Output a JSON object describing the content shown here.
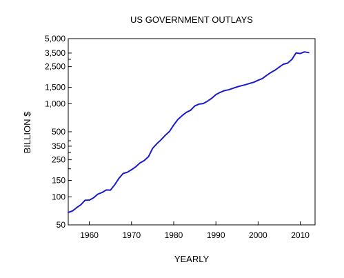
{
  "chart_data": {
    "type": "line",
    "title": "US GOVERNMENT OUTLAYS",
    "xlabel": "YEARLY",
    "ylabel": "BILLION $",
    "yscale": "log",
    "xlim": [
      1955,
      2013.5
    ],
    "ylim": [
      50,
      5000
    ],
    "grid": false,
    "legend": "none",
    "line_color": "#1a1acd",
    "x_ticks": [
      {
        "value": 1960,
        "label": "1960"
      },
      {
        "value": 1970,
        "label": "1970"
      },
      {
        "value": 1980,
        "label": "1980"
      },
      {
        "value": 1990,
        "label": "1990"
      },
      {
        "value": 2000,
        "label": "2000"
      },
      {
        "value": 2010,
        "label": "2010"
      }
    ],
    "y_ticks": [
      {
        "value": 50,
        "label": "50"
      },
      {
        "value": 100,
        "label": "100"
      },
      {
        "value": 150,
        "label": "150"
      },
      {
        "value": 250,
        "label": "250"
      },
      {
        "value": 350,
        "label": "350"
      },
      {
        "value": 500,
        "label": "500"
      },
      {
        "value": 1000,
        "label": "1,000"
      },
      {
        "value": 1500,
        "label": "1,500"
      },
      {
        "value": 2500,
        "label": "2,500"
      },
      {
        "value": 3500,
        "label": "3,500"
      },
      {
        "value": 5000,
        "label": "5,000"
      }
    ],
    "y_minor_ticks": [
      200,
      300,
      400,
      3000
    ],
    "series": [
      {
        "x": [
          1955,
          1956,
          1957,
          1958,
          1959,
          1960,
          1961,
          1962,
          1963,
          1964,
          1965,
          1966,
          1967,
          1968,
          1969,
          1970,
          1971,
          1972,
          1973,
          1974,
          1975,
          1976,
          1977,
          1978,
          1979,
          1980,
          1981,
          1982,
          1983,
          1984,
          1985,
          1986,
          1987,
          1988,
          1989,
          1990,
          1991,
          1992,
          1993,
          1994,
          1995,
          1996,
          1997,
          1998,
          1999,
          2000,
          2001,
          2002,
          2003,
          2004,
          2005,
          2006,
          2007,
          2008,
          2009,
          2010,
          2011,
          2012
        ],
        "values": [
          68,
          70.6,
          76.6,
          82.4,
          92.1,
          92.2,
          97.7,
          106.8,
          111.3,
          118.5,
          118.2,
          134.5,
          157.5,
          178.1,
          183.6,
          195.6,
          210.2,
          230.7,
          245.7,
          269.4,
          332.3,
          371.8,
          409.2,
          458.7,
          504.0,
          590.9,
          678.2,
          745.7,
          808.4,
          851.8,
          946.3,
          990.4,
          1004.0,
          1064.4,
          1143.7,
          1253.0,
          1324.2,
          1381.5,
          1409.4,
          1461.8,
          1515.7,
          1560.5,
          1601.1,
          1652.5,
          1701.8,
          1789.0,
          1862.8,
          2010.9,
          2159.9,
          2292.8,
          2472.0,
          2655.1,
          2728.7,
          2982.5,
          3517.7,
          3457.1,
          3603.1,
          3537.0
        ]
      }
    ]
  }
}
